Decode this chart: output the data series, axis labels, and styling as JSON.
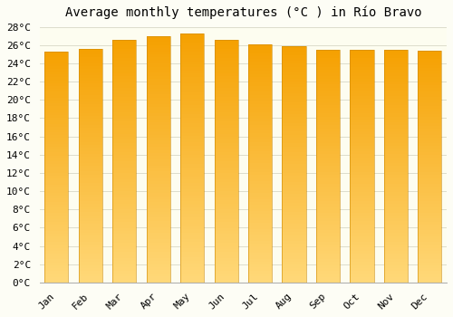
{
  "title": "Average monthly temperatures (°C ) in Río Bravo",
  "months": [
    "Jan",
    "Feb",
    "Mar",
    "Apr",
    "May",
    "Jun",
    "Jul",
    "Aug",
    "Sep",
    "Oct",
    "Nov",
    "Dec"
  ],
  "values": [
    25.3,
    25.6,
    26.6,
    27.0,
    27.3,
    26.6,
    26.1,
    25.9,
    25.5,
    25.5,
    25.5,
    25.4
  ],
  "bar_color_bottom": "#FFD878",
  "bar_color_top": "#F5A000",
  "bar_edge_color": "#CC8800",
  "background_color": "#FDFDF0",
  "grid_color": "#DDDDCC",
  "ylim": [
    0,
    28
  ],
  "ytick_step": 2,
  "title_fontsize": 10,
  "tick_fontsize": 8,
  "figure_bg": "#FDFDF5"
}
